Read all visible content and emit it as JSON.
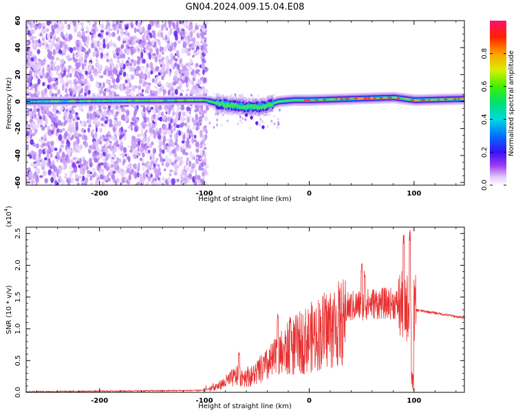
{
  "title": "GN04.2024.009.15.04.E08",
  "chart_data": [
    {
      "type": "heatmap",
      "xlabel": "Height of straight line (km)",
      "ylabel": "Frequency (Hz)",
      "xlim": [
        -270,
        148
      ],
      "ylim": [
        -62,
        60
      ],
      "x_ticks": [
        "-200",
        "-100",
        "0",
        "100"
      ],
      "y_ticks": [
        "-60",
        "-40",
        "-20",
        "0",
        "20",
        "40",
        "60"
      ],
      "colorbar": {
        "label": "Normalized spectral amplitude",
        "range": [
          0.0,
          1.0
        ],
        "ticks": [
          "0.0",
          "0.2",
          "0.4",
          "0.6",
          "0.8"
        ]
      },
      "features": {
        "noise_region_x": [
          -270,
          -97
        ],
        "centerline_freq": [
          {
            "x": -270,
            "f": 0
          },
          {
            "x": -100,
            "f": 1
          },
          {
            "x": -85,
            "f": -2
          },
          {
            "x": -60,
            "f": -4
          },
          {
            "x": -45,
            "f": -4
          },
          {
            "x": -30,
            "f": 0
          },
          {
            "x": -15,
            "f": 1
          },
          {
            "x": 0,
            "f": 1
          },
          {
            "x": 40,
            "f": 2
          },
          {
            "x": 80,
            "f": 3
          },
          {
            "x": 100,
            "f": 1
          },
          {
            "x": 148,
            "f": 2
          }
        ]
      }
    },
    {
      "type": "line",
      "xlabel": "Height of straight line (km)",
      "ylabel": "SNR (10 * v/v)",
      "y_multiplier": "x10^4",
      "multiplier_base": "(x10",
      "multiplier_exp": "4",
      "multiplier_close": ")",
      "xlim": [
        -270,
        148
      ],
      "ylim": [
        0.0,
        2.6
      ],
      "x_ticks": [
        "-200",
        "-100",
        "0",
        "100"
      ],
      "y_ticks": [
        "0.0",
        "0.5",
        "1.0",
        "1.5",
        "2.0",
        "2.5"
      ],
      "color": "#e83030",
      "envelope": [
        {
          "x": -270,
          "y": 0.01
        },
        {
          "x": -100,
          "y": 0.03
        },
        {
          "x": -88,
          "y": 0.1
        },
        {
          "x": -70,
          "y": 0.3
        },
        {
          "x": -55,
          "y": 0.3
        },
        {
          "x": -40,
          "y": 0.5
        },
        {
          "x": -20,
          "y": 0.8
        },
        {
          "x": 0,
          "y": 1.0
        },
        {
          "x": 20,
          "y": 1.2
        },
        {
          "x": 40,
          "y": 1.35
        },
        {
          "x": 60,
          "y": 1.4
        },
        {
          "x": 80,
          "y": 1.4
        },
        {
          "x": 100,
          "y": 1.3
        },
        {
          "x": 120,
          "y": 1.25
        },
        {
          "x": 148,
          "y": 1.17
        }
      ],
      "peaks": [
        {
          "x": -67,
          "y": 0.65
        },
        {
          "x": -30,
          "y": 1.25
        },
        {
          "x": -18,
          "y": 1.2
        },
        {
          "x": 50,
          "y": 2.05
        },
        {
          "x": 53,
          "y": 1.95
        },
        {
          "x": 90,
          "y": 2.5
        },
        {
          "x": 96,
          "y": 2.6
        },
        {
          "x": 99,
          "y": 2.55
        }
      ]
    }
  ]
}
